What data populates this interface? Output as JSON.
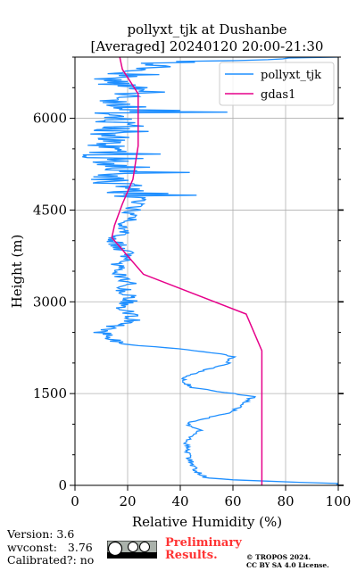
{
  "chart_data": {
    "type": "line",
    "title_lines": [
      "pollyxt_tjk at Dushanbe",
      "[Averaged] 20240120 20:00-21:30"
    ],
    "xlabel": "Relative Humidity (%)",
    "ylabel": "Height (m)",
    "xlim": [
      0,
      100
    ],
    "ylim": [
      0,
      7000
    ],
    "xticks": [
      0,
      20,
      40,
      60,
      80,
      100
    ],
    "yticks": [
      0,
      1500,
      3000,
      4500,
      6000
    ],
    "grid": true,
    "legend_position": "top-right",
    "series": [
      {
        "name": "pollyxt_tjk",
        "color": "#1f8fff",
        "noisy": true,
        "points": [
          [
            100,
            0
          ],
          [
            100,
            30
          ],
          [
            84,
            50
          ],
          [
            72,
            70
          ],
          [
            60,
            90
          ],
          [
            50,
            120
          ],
          [
            47,
            200
          ],
          [
            45,
            300
          ],
          [
            44,
            400
          ],
          [
            43,
            500
          ],
          [
            43,
            600
          ],
          [
            42,
            700
          ],
          [
            44,
            800
          ],
          [
            46,
            850
          ],
          [
            48,
            900
          ],
          [
            45,
            950
          ],
          [
            43,
            1000
          ],
          [
            45,
            1050
          ],
          [
            50,
            1100
          ],
          [
            55,
            1150
          ],
          [
            60,
            1200
          ],
          [
            63,
            1300
          ],
          [
            66,
            1400
          ],
          [
            68,
            1450
          ],
          [
            60,
            1500
          ],
          [
            52,
            1550
          ],
          [
            45,
            1600
          ],
          [
            40,
            1700
          ],
          [
            43,
            1800
          ],
          [
            50,
            1900
          ],
          [
            55,
            1950
          ],
          [
            58,
            2000
          ],
          [
            60,
            2100
          ],
          [
            56,
            2150
          ],
          [
            45,
            2200
          ],
          [
            35,
            2250
          ],
          [
            20,
            2300
          ],
          [
            13,
            2400
          ],
          [
            10,
            2500
          ],
          [
            15,
            2600
          ],
          [
            22,
            2700
          ],
          [
            22,
            2800
          ],
          [
            18,
            2900
          ],
          [
            20,
            3000
          ],
          [
            22,
            3100
          ],
          [
            18,
            3200
          ],
          [
            20,
            3300
          ],
          [
            18,
            3400
          ],
          [
            17,
            3500
          ],
          [
            16,
            3600
          ],
          [
            18,
            3700
          ],
          [
            19,
            3800
          ],
          [
            17,
            3900
          ],
          [
            15,
            4000
          ],
          [
            17,
            4100
          ],
          [
            19,
            4200
          ],
          [
            20,
            4300
          ],
          [
            20,
            4400
          ],
          [
            22,
            4500
          ],
          [
            24,
            4600
          ],
          [
            26,
            4700
          ],
          [
            18,
            4800
          ],
          [
            14,
            4900
          ],
          [
            12,
            5000
          ],
          [
            16,
            5100
          ],
          [
            18,
            5200
          ],
          [
            14,
            5300
          ],
          [
            10,
            5400
          ],
          [
            12,
            5500
          ],
          [
            10,
            5600
          ],
          [
            14,
            5700
          ],
          [
            16,
            5800
          ],
          [
            18,
            5900
          ],
          [
            14,
            6000
          ],
          [
            16,
            6100
          ],
          [
            20,
            6200
          ],
          [
            18,
            6300
          ],
          [
            22,
            6400
          ],
          [
            20,
            6500
          ],
          [
            15,
            6600
          ],
          [
            18,
            6700
          ],
          [
            22,
            6800
          ],
          [
            25,
            6900
          ],
          [
            100,
            7000
          ]
        ]
      },
      {
        "name": "gdas1",
        "color": "#e6008a",
        "noisy": false,
        "points": [
          [
            71,
            0
          ],
          [
            71,
            2200
          ],
          [
            65,
            2800
          ],
          [
            26,
            3450
          ],
          [
            14,
            4050
          ],
          [
            15,
            4250
          ],
          [
            18,
            4600
          ],
          [
            22,
            5000
          ],
          [
            24,
            5550
          ],
          [
            24,
            6050
          ],
          [
            24,
            6400
          ],
          [
            18,
            6800
          ],
          [
            17,
            7000
          ]
        ]
      }
    ]
  },
  "footer": {
    "version_line": "Version: 3.6",
    "wvconst_line": "wvconst:   3.76",
    "calibrated_line": "Calibrated?: no",
    "preliminary_line1": "Preliminary",
    "preliminary_line2": "Results.",
    "credit_line1": "© TROPOS 2024.",
    "credit_line2": "CC BY SA 4.0 License."
  }
}
